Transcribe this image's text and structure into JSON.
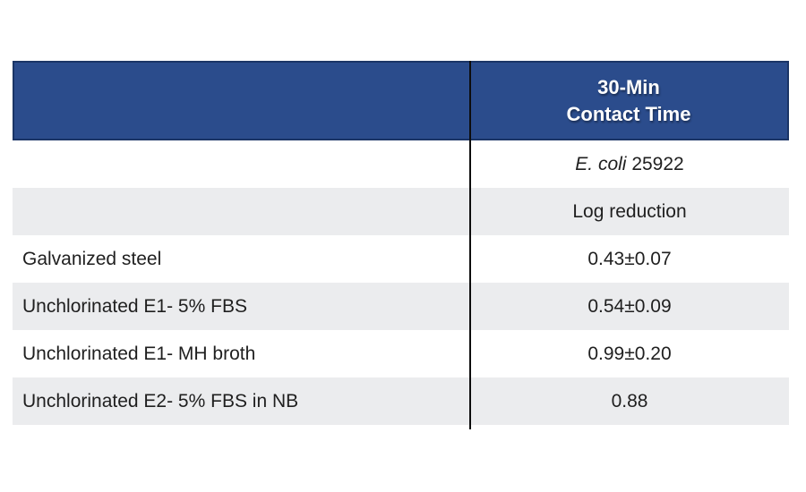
{
  "colors": {
    "header_bg": "#2B4C8C",
    "header_border": "#1B3566",
    "row_alt_bg": "#EBECEE",
    "divider": "#0D0D0D",
    "header_text": "#FFFFFF",
    "body_text": "#1F1F1F"
  },
  "table": {
    "header": {
      "line1": "30-Min",
      "line2": "Contact Time"
    },
    "organism": {
      "italic": "E. coli",
      "strain": "25922"
    },
    "metric_label": "Log reduction",
    "rows": [
      {
        "label": "Galvanized steel",
        "value": "0.43±0.07"
      },
      {
        "label": "Unchlorinated E1- 5% FBS",
        "value": "0.54±0.09"
      },
      {
        "label": "Unchlorinated E1- MH broth",
        "value": "0.99±0.20"
      },
      {
        "label": "Unchlorinated E2- 5% FBS in NB",
        "value": "0.88"
      }
    ]
  },
  "chart_data": {
    "type": "table",
    "title": "",
    "columns": [
      "",
      "30-Min Contact Time"
    ],
    "header_rows": [
      [
        "",
        "E. coli 25922"
      ],
      [
        "",
        "Log reduction"
      ]
    ],
    "rows": [
      [
        "Galvanized steel",
        "0.43±0.07"
      ],
      [
        "Unchlorinated E1- 5% FBS",
        "0.54±0.09"
      ],
      [
        "Unchlorinated E1- MH broth",
        "0.99±0.20"
      ],
      [
        "Unchlorinated E2- 5% FBS in NB",
        "0.88"
      ]
    ],
    "values": [
      0.43,
      0.54,
      0.99,
      0.88
    ],
    "errors": [
      0.07,
      0.09,
      0.2,
      null
    ],
    "notes": "Log reduction of E. coli 25922 after 30-min contact time on various surfaces/conditions"
  }
}
